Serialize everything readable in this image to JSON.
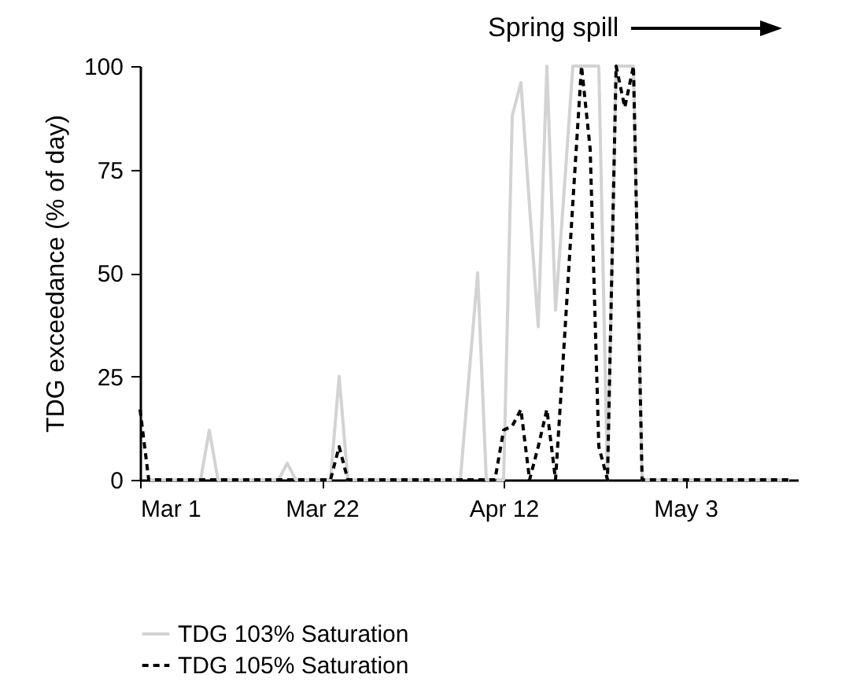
{
  "chart_data": {
    "type": "line",
    "ylabel": "TDG exceedance (% of day)",
    "annotations": [
      "Spring spill"
    ],
    "x": [
      "--03-01",
      "--03-02",
      "--03-03",
      "--03-04",
      "--03-05",
      "--03-06",
      "--03-07",
      "--03-08",
      "--03-09",
      "--03-10",
      "--03-11",
      "--03-12",
      "--03-13",
      "--03-14",
      "--03-15",
      "--03-16",
      "--03-17",
      "--03-18",
      "--03-19",
      "--03-20",
      "--03-21",
      "--03-22",
      "--03-23",
      "--03-24",
      "--03-25",
      "--03-26",
      "--03-27",
      "--03-28",
      "--03-29",
      "--03-30",
      "--03-31",
      "--04-01",
      "--04-02",
      "--04-03",
      "--04-04",
      "--04-05",
      "--04-06",
      "--04-07",
      "--04-08",
      "--04-09",
      "--04-10",
      "--04-11",
      "--04-12",
      "--04-13",
      "--04-14",
      "--04-15",
      "--04-16",
      "--04-17",
      "--04-18",
      "--04-19",
      "--04-20",
      "--04-21",
      "--04-22",
      "--04-23",
      "--04-24",
      "--04-25",
      "--04-26",
      "--04-27",
      "--04-28",
      "--04-29",
      "--04-30",
      "--05-01",
      "--05-02",
      "--05-03",
      "--05-04",
      "--05-05",
      "--05-06",
      "--05-07",
      "--05-08",
      "--05-09",
      "--05-10",
      "--05-11",
      "--05-12",
      "--05-13",
      "--05-14",
      "--05-15"
    ],
    "series": [
      {
        "name": "TDG 103% Saturation",
        "color": "#d3d3d3",
        "line_style": "solid",
        "values": [
          null,
          0,
          0,
          0,
          0,
          0,
          0,
          0,
          12,
          0,
          0,
          0,
          0,
          0,
          0,
          0,
          0,
          4,
          0,
          0,
          0,
          0,
          0,
          25,
          0,
          0,
          0,
          0,
          0,
          0,
          0,
          0,
          0,
          0,
          0,
          0,
          0,
          0,
          25,
          50,
          0,
          0,
          0,
          88,
          96,
          66,
          37,
          100,
          41,
          70,
          100,
          100,
          100,
          100,
          0,
          100,
          100,
          100,
          0,
          0,
          0,
          0,
          0,
          0,
          0,
          0,
          0,
          0,
          0,
          0,
          0,
          0,
          0,
          0,
          0,
          0
        ]
      },
      {
        "name": "TDG 105% Saturation",
        "color": "#000000",
        "line_style": "dashed",
        "values": [
          17,
          0,
          0,
          0,
          0,
          0,
          0,
          0,
          0,
          0,
          0,
          0,
          0,
          0,
          0,
          0,
          0,
          0,
          0,
          0,
          0,
          0,
          0,
          8,
          0,
          0,
          0,
          0,
          0,
          0,
          0,
          0,
          0,
          0,
          0,
          0,
          0,
          0,
          0,
          0,
          0,
          0,
          12,
          13,
          17,
          0,
          8,
          17,
          0,
          33,
          67,
          100,
          80,
          8,
          0,
          100,
          90,
          100,
          0,
          0,
          0,
          0,
          0,
          0,
          0,
          0,
          0,
          0,
          0,
          0,
          0,
          0,
          0,
          0,
          0,
          0
        ]
      }
    ],
    "xlim": [
      "--03-01",
      "--05-16"
    ],
    "xticks": [
      {
        "value": "--03-01",
        "label": "Mar 1"
      },
      {
        "value": "--03-22",
        "label": "Mar 22"
      },
      {
        "value": "--04-12",
        "label": "Apr 12"
      },
      {
        "value": "--05-03",
        "label": "May 3"
      }
    ],
    "ylim": [
      0,
      100
    ],
    "yticks": [
      0,
      25,
      50,
      75,
      100
    ],
    "legend": "bottom"
  }
}
